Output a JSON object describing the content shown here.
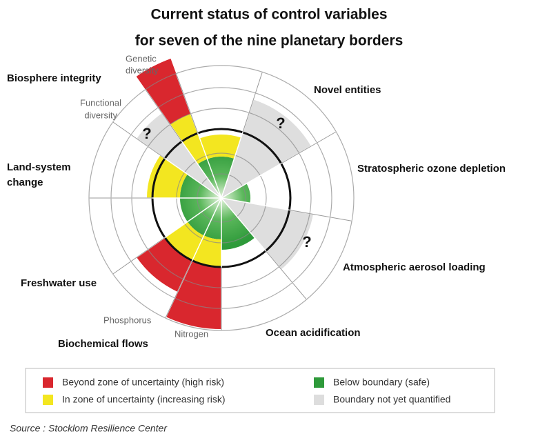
{
  "header": {
    "title_lines": [
      "Current status of control variables",
      "for seven of the nine planetary borders"
    ]
  },
  "labels": {
    "biosphere_integrity": "Biosphere integrity",
    "genetic_diversity": [
      "Genetic",
      "diversity"
    ],
    "functional_diversity": [
      "Functional",
      "diversity"
    ],
    "novel_entities": "Novel entities",
    "ozone": "Stratospheric ozone depletion",
    "land_system": [
      "Land-system",
      "change"
    ],
    "aerosol": "Atmospheric aerosol loading",
    "freshwater": "Freshwater use",
    "phosphorus": "Phosphorus",
    "nitrogen": "Nitrogen",
    "ocean": "Ocean acidification",
    "biochemical": "Biochemical flows"
  },
  "question_marks": [
    "?",
    "?",
    "?"
  ],
  "legend": [
    "Beyond zone of uncertainty (high risk)",
    "In zone of uncertainty (increasing risk)",
    "Below boundary (safe)",
    "Boundary not yet quantified"
  ],
  "source": "Source : Stocklom Resilience Center"
}
